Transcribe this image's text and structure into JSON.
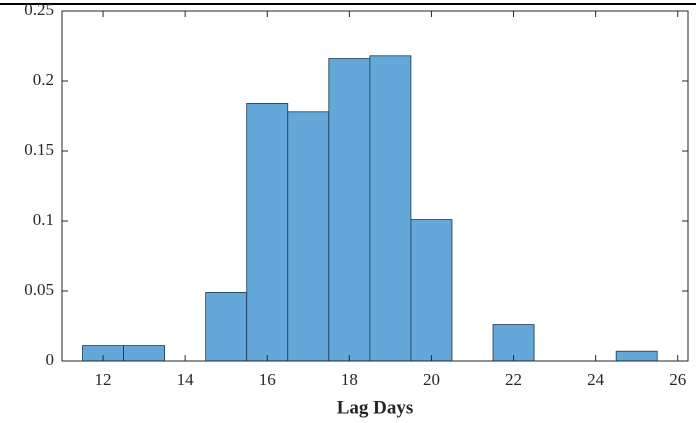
{
  "chart_data": {
    "type": "histogram",
    "x_label": "Lag Days",
    "bins": [
      11.5,
      12.5,
      13.5,
      14.5,
      15.5,
      16.5,
      17.5,
      18.5,
      19.5,
      20.5,
      21.5,
      22.5,
      23.5,
      24.5,
      25.5
    ],
    "counts": [
      0.011,
      0.011,
      0,
      0.049,
      0.184,
      0.178,
      0.216,
      0.218,
      0.101,
      0,
      0.026,
      0,
      0,
      0.007
    ],
    "color": "#63a8d8",
    "edge_color": "#1f3550",
    "xlim": [
      11,
      26.25
    ],
    "ylim": [
      0,
      0.25
    ],
    "xticks": [
      12,
      14,
      16,
      18,
      20,
      22,
      24,
      26
    ],
    "yticks": [
      0,
      0.05,
      0.1,
      0.15,
      0.2,
      0.25
    ]
  }
}
